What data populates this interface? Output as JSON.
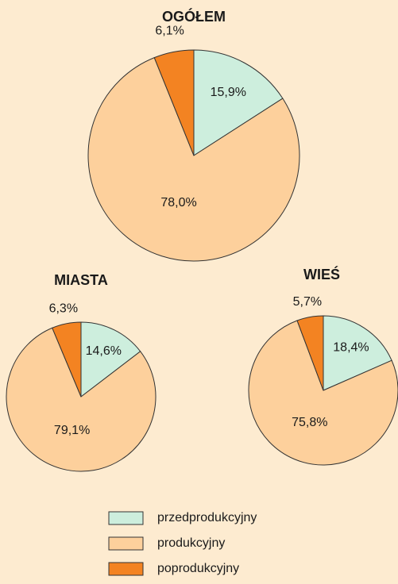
{
  "chart_data": [
    {
      "type": "pie",
      "title": "OGÓŁEM",
      "categories": [
        "przedprodukcyjny",
        "produkcyjny",
        "poprodukcyjny"
      ],
      "colors": [
        "#cdeedd",
        "#fdd09c",
        "#f38322"
      ],
      "values": [
        15.9,
        78.0,
        6.1
      ],
      "value_labels": [
        "15,9%",
        "78,0%",
        "6,1%"
      ]
    },
    {
      "type": "pie",
      "title": "MIASTA",
      "values": [
        14.6,
        79.1,
        6.3
      ],
      "value_labels": [
        "14,6%",
        "79,1%",
        "6,3%"
      ]
    },
    {
      "type": "pie",
      "title": "WIEŚ",
      "values": [
        18.4,
        75.8,
        5.7
      ],
      "value_labels": [
        "18,4%",
        "75,8%",
        "5,7%"
      ]
    }
  ]
}
